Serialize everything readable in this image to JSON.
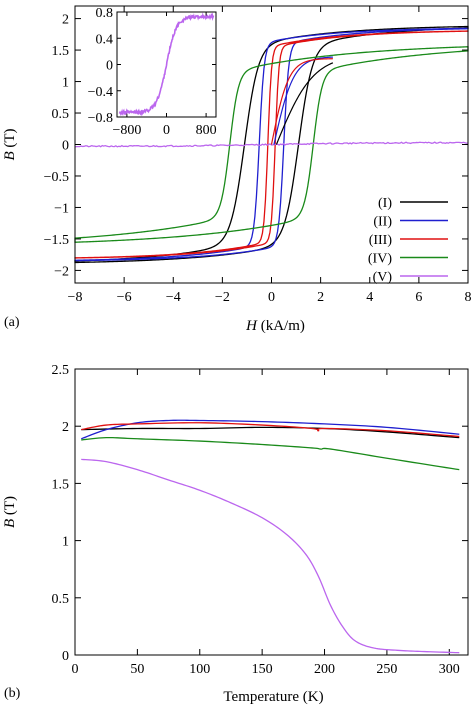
{
  "chart_data": [
    {
      "panel_label": "(a)",
      "type": "line",
      "xlabel_var": "H",
      "xlabel_unit": " (kA/m)",
      "ylabel_var": "B",
      "ylabel_unit": " (T)",
      "xlim": [
        -8,
        8
      ],
      "ylim": [
        -2.2,
        2.2
      ],
      "xticks": [
        -8,
        -6,
        -4,
        -2,
        0,
        2,
        4,
        6,
        8
      ],
      "xtick_labels": [
        "−8",
        "−6",
        "−4",
        "−2",
        "0",
        "2",
        "4",
        "6",
        "8"
      ],
      "yticks": [
        -2,
        -1.5,
        -1,
        -0.5,
        0,
        0.5,
        1,
        1.5,
        2
      ],
      "ytick_labels": [
        "−2",
        "−1.5",
        "−1",
        "−0.5",
        "0",
        "0.5",
        "1",
        "1.5",
        "2"
      ],
      "legend_position": "bottom-right",
      "series": [
        {
          "name": "(I)",
          "color": "#000000",
          "Bs": 1.9,
          "Hc": 1.1,
          "w": 0.55,
          "Bmin": 1.55,
          "tailw": 3.5
        },
        {
          "name": "(II)",
          "color": "#1f1fcf",
          "Bs": 1.86,
          "Hc": 0.5,
          "w": 0.2,
          "Bmin": 1.6,
          "tailw": 3.0
        },
        {
          "name": "(III)",
          "color": "#e01010",
          "Bs": 1.82,
          "Hc": 0.15,
          "w": 0.15,
          "Bmin": 1.55,
          "tailw": 3.0
        },
        {
          "name": "(IV)",
          "color": "#1a8a1a",
          "Bs": 1.62,
          "Hc": 1.7,
          "w": 0.35,
          "Bmin": 1.15,
          "tailw": 5.0
        },
        {
          "name": "(V)",
          "color": "#bb66ee",
          "Bs": 0.03,
          "Hc": 0.0,
          "w": 4.0,
          "Bmin": 0.0,
          "tailw": 1.0
        }
      ],
      "initial_curves": [
        {
          "series": "(I)",
          "start_x": 0.2
        },
        {
          "series": "(II)",
          "start_x": 0.1
        },
        {
          "series": "(III)",
          "start_x": 0.0
        }
      ],
      "inset": {
        "xlim": [
          -1000,
          1000
        ],
        "ylim": [
          -0.8,
          0.8
        ],
        "xticks": [
          -800,
          0,
          800
        ],
        "xtick_labels": [
          "−800",
          "0",
          "800"
        ],
        "yticks": [
          -0.8,
          -0.4,
          0,
          0.4,
          0.8
        ],
        "ytick_labels": [
          "−0.8",
          "−0.4",
          "0",
          "0.4",
          "0.8"
        ],
        "color": "#bb66ee",
        "amplitude": 0.73,
        "scale": 200
      }
    },
    {
      "panel_label": "(b)",
      "type": "line",
      "xlabel": "Temperature (K)",
      "ylabel_var": "B",
      "ylabel_unit": " (T)",
      "xlim": [
        0,
        315
      ],
      "ylim": [
        0,
        2.5
      ],
      "xticks": [
        0,
        50,
        100,
        150,
        200,
        250,
        300
      ],
      "xtick_labels": [
        "0",
        "50",
        "100",
        "150",
        "200",
        "250",
        "300"
      ],
      "yticks": [
        0,
        0.5,
        1,
        1.5,
        2,
        2.5
      ],
      "ytick_labels": [
        "0",
        "0.5",
        "1",
        "1.5",
        "2",
        "2.5"
      ],
      "series": [
        {
          "name": "(I)",
          "color": "#000000",
          "x": [
            5,
            50,
            100,
            150,
            200,
            250,
            308
          ],
          "y": [
            1.97,
            1.98,
            1.98,
            1.99,
            1.98,
            1.95,
            1.9
          ]
        },
        {
          "name": "(II)",
          "color": "#1f1fcf",
          "x": [
            5,
            25,
            50,
            75,
            100,
            150,
            200,
            250,
            308
          ],
          "y": [
            1.89,
            1.97,
            2.03,
            2.05,
            2.05,
            2.04,
            2.02,
            1.99,
            1.93
          ]
        },
        {
          "name": "(III)",
          "color": "#e01010",
          "x": [
            5,
            25,
            50,
            100,
            150,
            190,
            195,
            200,
            250,
            308
          ],
          "y": [
            1.97,
            2.01,
            2.02,
            2.03,
            2.01,
            1.98,
            1.96,
            1.98,
            1.96,
            1.91
          ]
        },
        {
          "name": "(IV)",
          "color": "#1a8a1a",
          "x": [
            5,
            25,
            50,
            100,
            150,
            190,
            197,
            205,
            250,
            308
          ],
          "y": [
            1.88,
            1.9,
            1.89,
            1.87,
            1.84,
            1.81,
            1.8,
            1.8,
            1.72,
            1.62
          ]
        },
        {
          "name": "(V)",
          "color": "#bb66ee",
          "x": [
            5,
            25,
            50,
            75,
            100,
            125,
            150,
            170,
            185,
            195,
            205,
            215,
            225,
            240,
            260,
            280,
            308
          ],
          "y": [
            1.71,
            1.69,
            1.62,
            1.53,
            1.44,
            1.33,
            1.2,
            1.05,
            0.88,
            0.69,
            0.43,
            0.24,
            0.12,
            0.06,
            0.04,
            0.03,
            0.02
          ]
        }
      ]
    }
  ]
}
